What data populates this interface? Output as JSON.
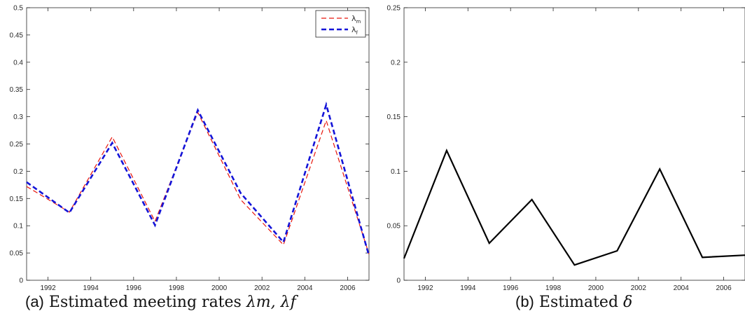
{
  "chart_data": [
    {
      "type": "line",
      "caption": {
        "label": "(a)",
        "text": "Estimated meeting rates",
        "math": "λm, λf"
      },
      "x": [
        1991,
        1993,
        1995,
        1997,
        1999,
        2001,
        2003,
        2005,
        2007
      ],
      "xlim": [
        1991,
        2007
      ],
      "ylim": [
        0,
        0.5
      ],
      "xticks": [
        "1992",
        "1994",
        "1996",
        "1998",
        "2000",
        "2002",
        "2004",
        "2006"
      ],
      "yticks": [
        "0",
        "0.05",
        "0.1",
        "0.15",
        "0.2",
        "0.25",
        "0.3",
        "0.35",
        "0.4",
        "0.45",
        "0.5"
      ],
      "grid": false,
      "legend": "top-right",
      "series": [
        {
          "name": "λm",
          "legend_base": "λ",
          "legend_sub": "m",
          "color": "#e8160c",
          "dash": "dashed-thin",
          "values": [
            0.172,
            0.125,
            0.263,
            0.108,
            0.308,
            0.148,
            0.065,
            0.293,
            0.048
          ]
        },
        {
          "name": "λf",
          "legend_base": "λ",
          "legend_sub": "f",
          "color": "#1414d8",
          "dash": "dashed-thick",
          "values": [
            0.18,
            0.124,
            0.252,
            0.101,
            0.312,
            0.16,
            0.07,
            0.322,
            0.045
          ]
        }
      ]
    },
    {
      "type": "line",
      "caption": {
        "label": "(b)",
        "text": "Estimated",
        "math": "δ"
      },
      "x": [
        1991,
        1993,
        1995,
        1997,
        1999,
        2001,
        2003,
        2005,
        2007
      ],
      "xlim": [
        1991,
        2007
      ],
      "ylim": [
        0,
        0.25
      ],
      "xticks": [
        "1992",
        "1994",
        "1996",
        "1998",
        "2000",
        "2002",
        "2004",
        "2006"
      ],
      "yticks": [
        "0",
        "0.05",
        "0.1",
        "0.15",
        "0.2",
        "0.25"
      ],
      "grid": false,
      "series": [
        {
          "color": "#000000",
          "dash": "solid",
          "values": [
            0.02,
            0.119,
            0.034,
            0.074,
            0.014,
            0.027,
            0.102,
            0.021,
            0.023
          ]
        }
      ]
    }
  ]
}
